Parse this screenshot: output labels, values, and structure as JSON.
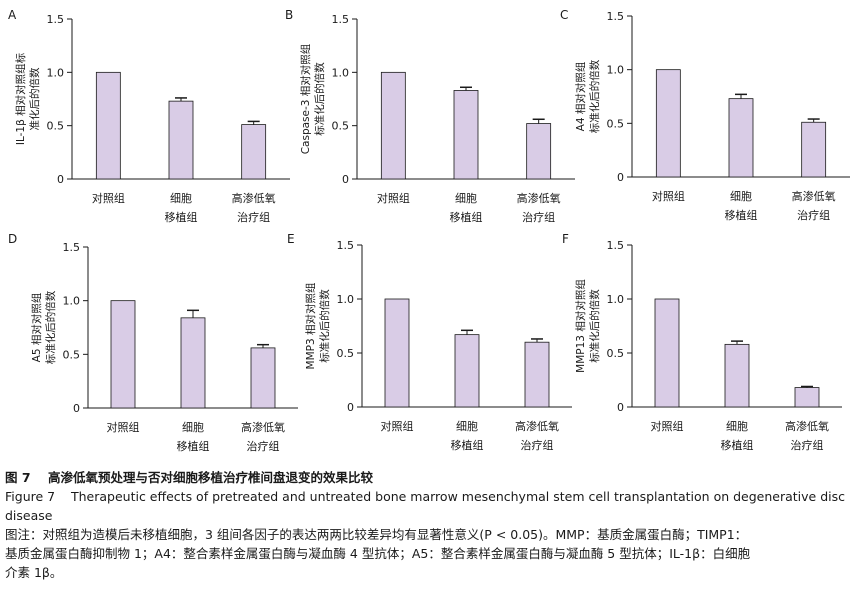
{
  "chart_data": [
    {
      "type": "bar",
      "panel": "A",
      "ylabel": [
        "IL-1β 相对对照组标",
        "准化后的倍数"
      ],
      "categories": [
        [
          "对照组"
        ],
        [
          "细胞",
          "移植组"
        ],
        [
          "高渗低氧",
          "治疗组"
        ]
      ],
      "values": [
        1.0,
        0.73,
        0.51
      ],
      "errors": [
        0,
        0.03,
        0.03
      ],
      "ylim": [
        0,
        1.5
      ],
      "yticks": [
        "0",
        "0.5",
        "1.0",
        "1.5"
      ],
      "bar_color": "#d9cce6"
    },
    {
      "type": "bar",
      "panel": "B",
      "ylabel": [
        "Caspase-3 相对对照组",
        "标准化后的倍数"
      ],
      "categories": [
        [
          "对照组"
        ],
        [
          "细胞",
          "移植组"
        ],
        [
          "高渗低氧",
          "治疗组"
        ]
      ],
      "values": [
        1.0,
        0.83,
        0.52
      ],
      "errors": [
        0,
        0.03,
        0.04
      ],
      "ylim": [
        0,
        1.5
      ],
      "yticks": [
        "0",
        "0.5",
        "1.0",
        "1.5"
      ],
      "bar_color": "#d9cce6"
    },
    {
      "type": "bar",
      "panel": "C",
      "ylabel": [
        "A4 相对对照组",
        "标准化后的倍数"
      ],
      "categories": [
        [
          "对照组"
        ],
        [
          "细胞",
          "移植组"
        ],
        [
          "高渗低氧",
          "治疗组"
        ]
      ],
      "values": [
        1.0,
        0.73,
        0.51
      ],
      "errors": [
        0,
        0.04,
        0.03
      ],
      "ylim": [
        0,
        1.5
      ],
      "yticks": [
        "0",
        "0.5",
        "1.0",
        "1.5"
      ],
      "bar_color": "#d9cce6"
    },
    {
      "type": "bar",
      "panel": "D",
      "ylabel": [
        "A5 相对对照组",
        "标准化后的倍数"
      ],
      "categories": [
        [
          "对照组"
        ],
        [
          "细胞",
          "移植组"
        ],
        [
          "高渗低氧",
          "治疗组"
        ]
      ],
      "values": [
        1.0,
        0.84,
        0.56
      ],
      "errors": [
        0,
        0.07,
        0.03
      ],
      "ylim": [
        0,
        1.5
      ],
      "yticks": [
        "0",
        "0.5",
        "1.0",
        "1.5"
      ],
      "bar_color": "#d9cce6"
    },
    {
      "type": "bar",
      "panel": "E",
      "ylabel": [
        "MMP3 相对对照组",
        "标准化后的倍数"
      ],
      "categories": [
        [
          "对照组"
        ],
        [
          "细胞",
          "移植组"
        ],
        [
          "高渗低氧",
          "治疗组"
        ]
      ],
      "values": [
        1.0,
        0.67,
        0.6
      ],
      "errors": [
        0,
        0.04,
        0.03
      ],
      "ylim": [
        0,
        1.5
      ],
      "yticks": [
        "0",
        "0.5",
        "1.0",
        "1.5"
      ],
      "bar_color": "#d9cce6"
    },
    {
      "type": "bar",
      "panel": "F",
      "ylabel": [
        "MMP13 相对对照组",
        "标准化后的倍数"
      ],
      "categories": [
        [
          "对照组"
        ],
        [
          "细胞",
          "移植组"
        ],
        [
          "高渗低氧",
          "治疗组"
        ]
      ],
      "values": [
        1.0,
        0.58,
        0.18
      ],
      "errors": [
        0,
        0.03,
        0.01
      ],
      "ylim": [
        0,
        1.5
      ],
      "yticks": [
        "0",
        "0.5",
        "1.0",
        "1.5"
      ],
      "bar_color": "#d9cce6"
    }
  ],
  "caption": {
    "title_zh": "图 7    高渗低氧预处理与否对细胞移植治疗椎间盘退变的效果比较",
    "title_en_1": "Figure 7    Therapeutic effects of pretreated and untreated bone marrow mesenchymal stem cell transplantation on degenerative disc",
    "title_en_2": "disease",
    "note_1": "图注：对照组为造模后未移植细胞，3 组间各因子的表达两两比较差异均有显著性意义(P < 0.05)。MMP：基质金属蛋白酶；TIMP1：",
    "note_2": "基质金属蛋白酶抑制物 1；A4：整合素样金属蛋白酶与凝血酶 4 型抗体；A5：整合素样金属蛋白酶与凝血酶 5 型抗体；IL-1β：白细胞",
    "note_3": "介素 1β。"
  }
}
